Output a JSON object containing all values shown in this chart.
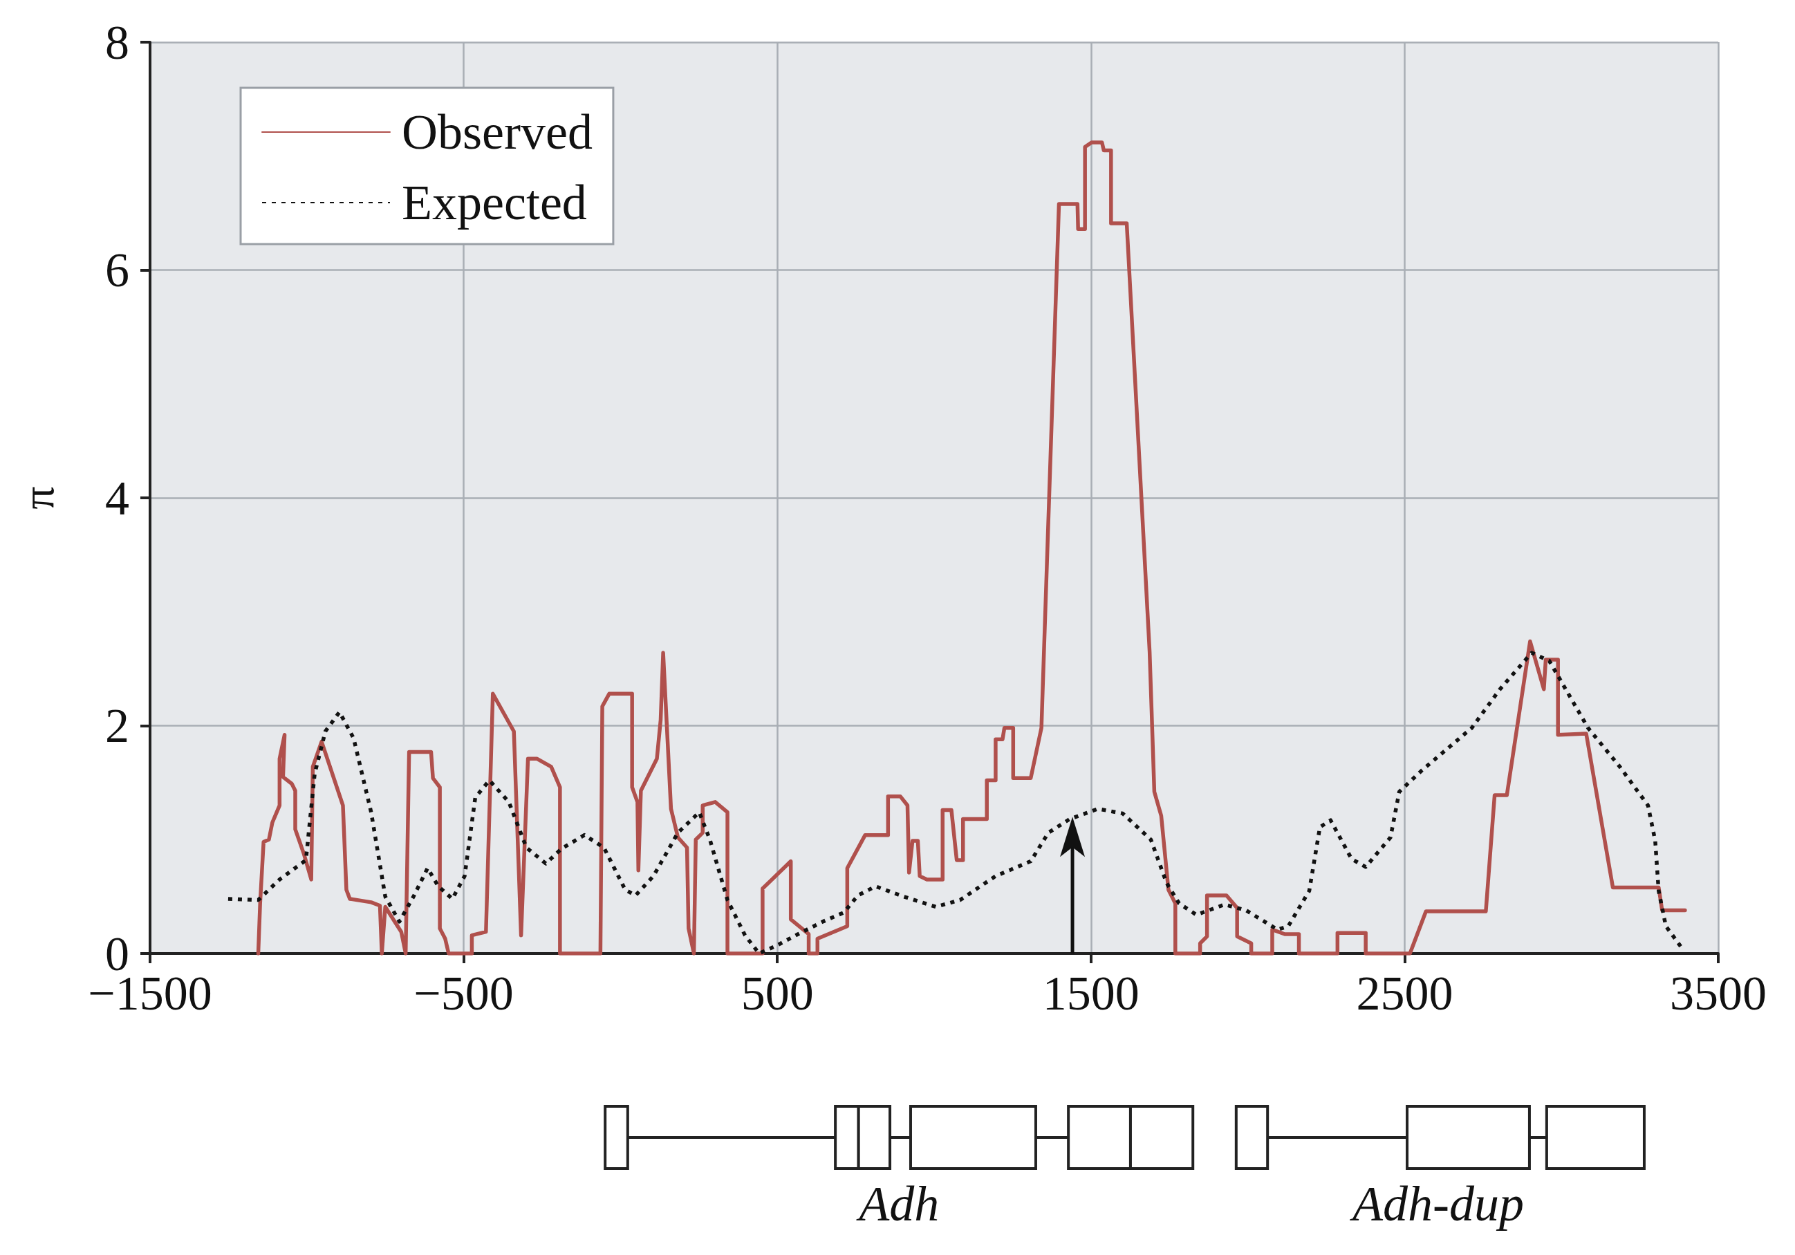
{
  "chart_data": {
    "type": "line",
    "ylabel": "π",
    "xlim": [
      -1500,
      3500
    ],
    "xticks": [
      {
        "value": -1500,
        "label": "−1500"
      },
      {
        "value": -500,
        "label": "−500"
      },
      500,
      1500,
      2500,
      3500
    ],
    "ylim": [
      0,
      8
    ],
    "yticks": [
      0,
      2,
      4,
      6,
      8
    ],
    "grid": true,
    "legend": "top left",
    "marker": "none",
    "annotations": [
      "Adh",
      "Adh-dup"
    ],
    "series": [
      {
        "name": "Observed",
        "color": "#b0504c",
        "line_style": "solid",
        "x": [
          -1155,
          -1149,
          -1138,
          -1121,
          -1110,
          -1087,
          -1087,
          -1071,
          -1076,
          -1048,
          -1037,
          -1037,
          -1009,
          -986,
          -981,
          -953,
          -885,
          -874,
          -863,
          -795,
          -767,
          -761,
          -750,
          -699,
          -685,
          -674,
          -604,
          -598,
          -576,
          -576,
          -559,
          -548,
          -474,
          -474,
          -429,
          -407,
          -340,
          -317,
          -295,
          -266,
          -221,
          -193,
          -193,
          -64,
          -58,
          -36,
          37,
          37,
          54,
          57,
          65,
          116,
          128,
          136,
          161,
          183,
          212,
          217,
          234,
          240,
          262,
          262,
          302,
          341,
          341,
          453,
          453,
          543,
          543,
          600,
          600,
          628,
          628,
          723,
          723,
          780,
          853,
          853,
          892,
          915,
          920,
          931,
          948,
          954,
          977,
          1027,
          1027,
          1055,
          1072,
          1092,
          1092,
          1168,
          1168,
          1196,
          1196,
          1218,
          1224,
          1252,
          1252,
          1308,
          1342,
          1398,
          1457,
          1459,
          1481,
          1481,
          1502,
          1535,
          1541,
          1564,
          1564,
          1614,
          1687,
          1702,
          1724,
          1747,
          1769,
          1769,
          1848,
          1848,
          1870,
          1870,
          1932,
          1966,
          1966,
          2011,
          2011,
          2078,
          2078,
          2118,
          2163,
          2163,
          2286,
          2286,
          2376,
          2376,
          2517,
          2568,
          2759,
          2787,
          2826,
          2900,
          2944,
          2950,
          2989,
          2989,
          3079,
          3164,
          3310,
          3321,
          3394
        ],
        "values": [
          0,
          0.44,
          0.98,
          1.0,
          1.15,
          1.3,
          1.71,
          1.92,
          1.55,
          1.49,
          1.43,
          1.09,
          0.87,
          0.65,
          1.64,
          1.86,
          1.3,
          0.56,
          0.48,
          0.45,
          0.42,
          0,
          0.41,
          0.19,
          0,
          1.77,
          1.77,
          1.54,
          1.46,
          0.22,
          0.13,
          0,
          0,
          0.16,
          0.19,
          2.28,
          1.95,
          0.16,
          1.71,
          1.71,
          1.64,
          1.46,
          0,
          0,
          2.17,
          2.28,
          2.28,
          1.46,
          1.33,
          0.73,
          1.43,
          1.71,
          2.05,
          2.64,
          1.27,
          1.02,
          0.93,
          0.22,
          0,
          1.0,
          1.06,
          1.3,
          1.33,
          1.24,
          0,
          0,
          0.57,
          0.81,
          0.3,
          0.17,
          0,
          0,
          0.13,
          0.24,
          0.75,
          1.04,
          1.04,
          1.38,
          1.38,
          1.3,
          0.71,
          0.99,
          0.99,
          0.68,
          0.65,
          0.65,
          1.26,
          1.26,
          0.82,
          0.82,
          1.18,
          1.18,
          1.52,
          1.52,
          1.88,
          1.88,
          1.98,
          1.98,
          1.54,
          1.54,
          1.98,
          6.58,
          6.58,
          6.36,
          6.36,
          7.08,
          7.12,
          7.12,
          7.05,
          7.05,
          6.41,
          6.41,
          2.65,
          1.42,
          1.21,
          0.56,
          0.44,
          0,
          0,
          0.09,
          0.15,
          0.51,
          0.51,
          0.4,
          0.15,
          0.09,
          0,
          0,
          0.21,
          0.17,
          0.17,
          0,
          0,
          0.18,
          0.18,
          0,
          0,
          0.37,
          0.37,
          1.39,
          1.39,
          2.74,
          2.32,
          2.58,
          2.58,
          1.92,
          1.93,
          0.58,
          0.58,
          0.38,
          0.38
        ]
      },
      {
        "name": "Expected",
        "color": "#111111",
        "line_style": "dotted",
        "x": [
          -1251,
          -1155,
          -1087,
          -1003,
          -975,
          -941,
          -896,
          -851,
          -795,
          -750,
          -705,
          -660,
          -615,
          -581,
          -536,
          -497,
          -463,
          -418,
          -356,
          -300,
          -238,
          -188,
          -115,
          -53,
          15,
          48,
          105,
          183,
          251,
          285,
          341,
          397,
          442,
          498,
          566,
          645,
          712,
          757,
          813,
          903,
          1005,
          1083,
          1196,
          1308,
          1364,
          1432,
          1522,
          1601,
          1691,
          1741,
          1781,
          1836,
          1926,
          1994,
          2095,
          2129,
          2196,
          2230,
          2264,
          2331,
          2376,
          2455,
          2483,
          2556,
          2714,
          2804,
          2905,
          2961,
          3085,
          3186,
          3276,
          3299,
          3310,
          3333,
          3389
        ],
        "values": [
          0.48,
          0.47,
          0.65,
          0.82,
          1.58,
          1.95,
          2.12,
          1.89,
          1.24,
          0.5,
          0.28,
          0.5,
          0.75,
          0.59,
          0.48,
          0.68,
          1.37,
          1.52,
          1.33,
          0.93,
          0.79,
          0.92,
          1.04,
          0.93,
          0.56,
          0.51,
          0.68,
          1.06,
          1.24,
          1.0,
          0.47,
          0.16,
          0,
          0.07,
          0.17,
          0.28,
          0.36,
          0.51,
          0.59,
          0.5,
          0.41,
          0.47,
          0.68,
          0.81,
          1.06,
          1.18,
          1.27,
          1.23,
          1.0,
          0.62,
          0.44,
          0.34,
          0.43,
          0.38,
          0.21,
          0.24,
          0.55,
          1.11,
          1.17,
          0.83,
          0.76,
          1.02,
          1.42,
          1.61,
          1.98,
          2.32,
          2.64,
          2.57,
          1.98,
          1.64,
          1.3,
          0.99,
          0.55,
          0.24,
          0.03
        ]
      }
    ]
  }
}
